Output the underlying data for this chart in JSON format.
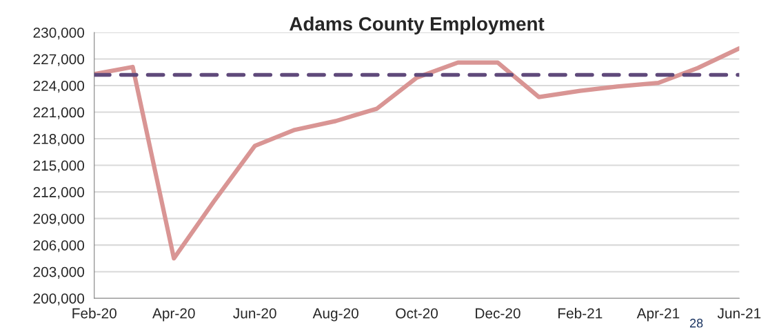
{
  "chart_data": {
    "type": "line",
    "title": "Adams County Employment",
    "x": [
      "2020-02",
      "2020-03",
      "2020-04",
      "2020-05",
      "2020-06",
      "2020-07",
      "2020-08",
      "2020-09",
      "2020-10",
      "2020-11",
      "2020-12",
      "2021-01",
      "2021-02",
      "2021-03",
      "2021-04",
      "2021-05",
      "2021-06"
    ],
    "series": [
      {
        "color": "#d99594",
        "values": [
          225300,
          226100,
          204500,
          210900,
          217200,
          219000,
          220000,
          221400,
          224900,
          226600,
          226600,
          222700,
          223400,
          223900,
          224300,
          226000,
          228200
        ]
      }
    ],
    "ref_lines": [
      {
        "axis": "y",
        "value": 225200,
        "color": "#604a7b",
        "line_style": "dashed"
      }
    ],
    "ylim": [
      200000,
      230000
    ],
    "yticks": [
      {
        "value": 200000,
        "label": "200,000"
      },
      {
        "value": 203000,
        "label": "203,000"
      },
      {
        "value": 206000,
        "label": "206,000"
      },
      {
        "value": 209000,
        "label": "209,000"
      },
      {
        "value": 212000,
        "label": "212,000"
      },
      {
        "value": 215000,
        "label": "215,000"
      },
      {
        "value": 218000,
        "label": "218,000"
      },
      {
        "value": 221000,
        "label": "221,000"
      },
      {
        "value": 224000,
        "label": "224,000"
      },
      {
        "value": 227000,
        "label": "227,000"
      },
      {
        "value": 230000,
        "label": "230,000"
      }
    ],
    "xlim": [
      "2020-02",
      "2021-06"
    ],
    "xticks": [
      {
        "value": "2020-02",
        "label": "Feb-20"
      },
      {
        "value": "2020-04",
        "label": "Apr-20"
      },
      {
        "value": "2020-06",
        "label": "Jun-20"
      },
      {
        "value": "2020-08",
        "label": "Aug-20"
      },
      {
        "value": "2020-10",
        "label": "Oct-20"
      },
      {
        "value": "2020-12",
        "label": "Dec-20"
      },
      {
        "value": "2021-02",
        "label": "Feb-21"
      },
      {
        "value": "2021-04",
        "label": "Apr-21"
      },
      {
        "value": "2021-06",
        "label": "Jun-21"
      }
    ],
    "grid": "y",
    "legend": false,
    "marker": "none",
    "line_style": "solid",
    "annotations": [
      "28"
    ]
  }
}
